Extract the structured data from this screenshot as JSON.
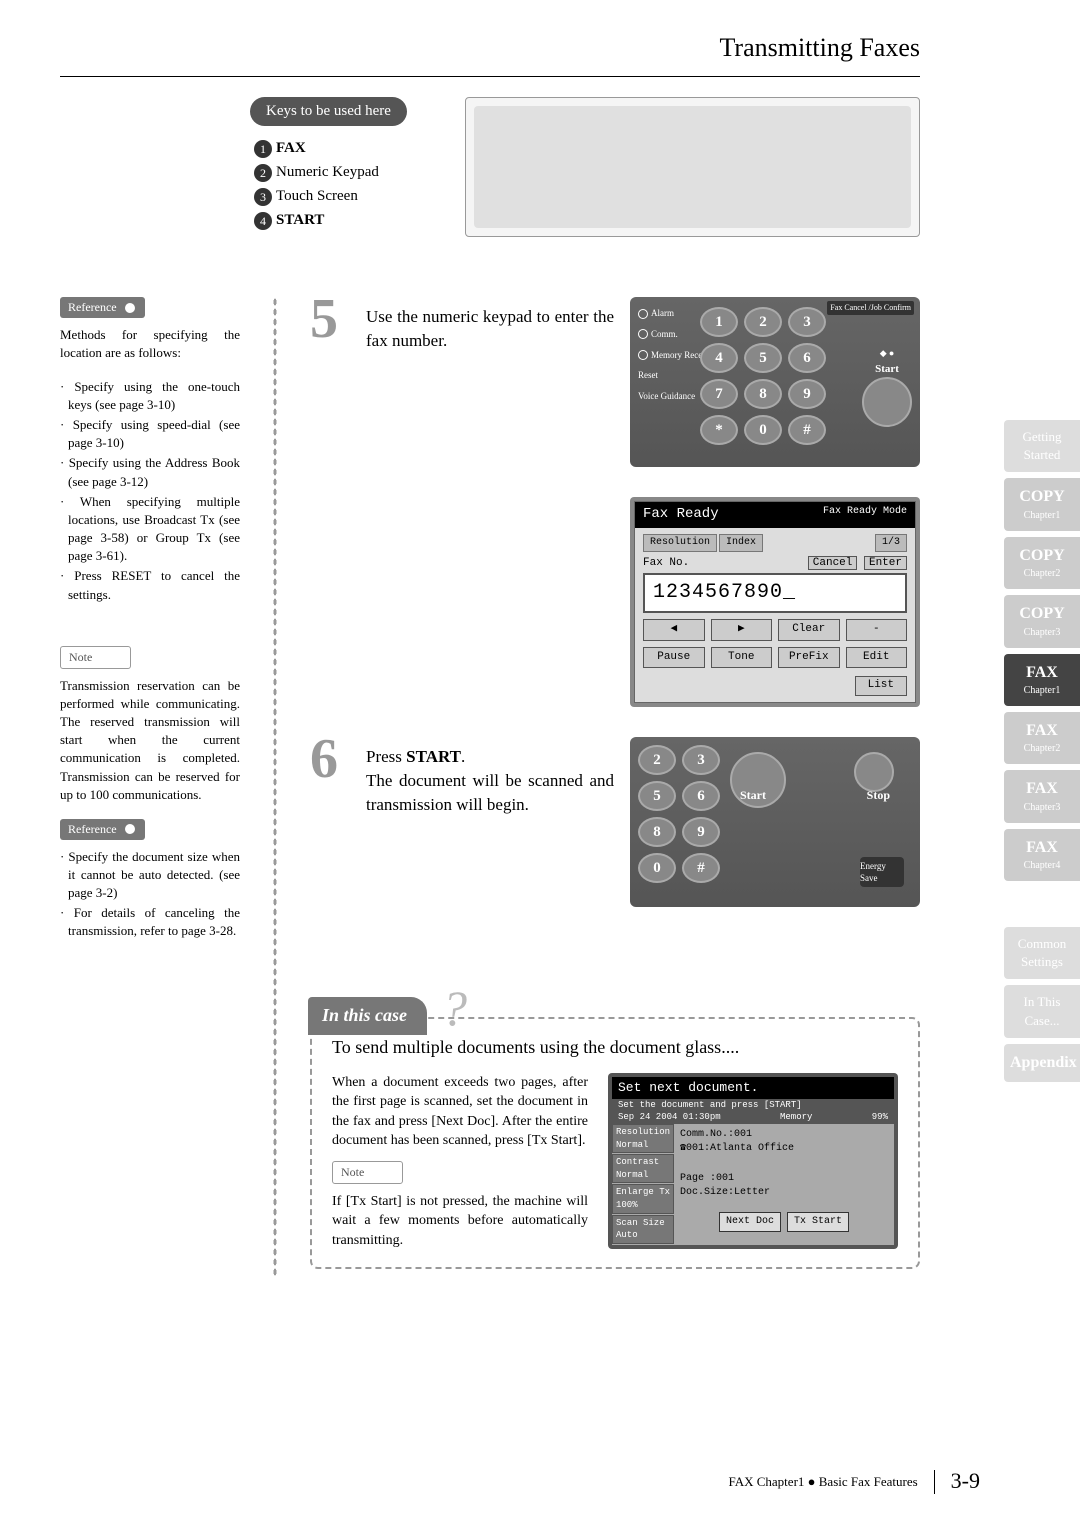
{
  "header": {
    "title": "Transmitting Faxes"
  },
  "keys": {
    "pill": "Keys to be used here",
    "items": [
      "FAX",
      "Numeric Keypad",
      "Touch Screen",
      "START"
    ]
  },
  "leftCol": {
    "ref1_label": "Reference",
    "ref1_intro": "Methods for specifying the location are as follows:",
    "ref1_items": [
      "Specify using the one-touch keys (see page 3-10)",
      "Specify using speed-dial (see page 3-10)",
      "Specify using the Address Book (see page 3-12)",
      "When specifying multiple locations, use Broadcast Tx (see page 3-58) or Group Tx (see page 3-61).",
      "Press RESET to cancel the settings."
    ],
    "note_label": "Note",
    "note_text": "Transmission reservation can be performed while communicating. The reserved transmission will start when the current communication is completed. Transmission can be reserved for up to 100 communications.",
    "ref2_label": "Reference",
    "ref2_items": [
      "Specify the document size when it cannot be auto detected. (see page 3-2)",
      "For details of canceling the transmission, refer to page 3-28."
    ]
  },
  "steps": {
    "s5": {
      "num": "5",
      "text": "Use the numeric keypad to enter the fax number."
    },
    "s6": {
      "num": "6",
      "text_a": "Press ",
      "text_b": "START",
      "text_c": ".",
      "text_d": "The document will be scanned and transmission will begin."
    }
  },
  "keypad": {
    "labels": {
      "alarm": "Alarm",
      "comm": "Comm.",
      "memory": "Memory Receive",
      "reset": "Reset",
      "voice": "Voice Guidance"
    },
    "fax_cancel": "Fax Cancel /Job Confirm",
    "start": "Start",
    "keys": [
      "1",
      "2",
      "3",
      "4",
      "5",
      "6",
      "7",
      "8",
      "9",
      "*",
      "0",
      "#"
    ]
  },
  "faxScreen": {
    "title": "Fax Ready",
    "mode": "Fax Ready Mode",
    "tab1": "Resolution",
    "tab2": "Index",
    "pager": "1/3",
    "faxno": "Fax No.",
    "cancel": "Cancel",
    "enter": "Enter",
    "number": "1234567890_",
    "row1": [
      "◀",
      "▶",
      "Clear",
      "-"
    ],
    "row2": [
      "Pause",
      "Tone",
      "PreFix",
      "Edit"
    ],
    "list": "List"
  },
  "startPanel": {
    "keys": [
      "2",
      "3",
      "5",
      "6",
      "8",
      "9",
      "0",
      "#"
    ],
    "start": "Start",
    "stop": "Stop",
    "energy": "Energy Save"
  },
  "case": {
    "tab": "In this case",
    "heading": "To send multiple documents using the document glass....",
    "p1": "When a document exceeds two pages, after the first page is scanned, set the document in the fax and press [Next Doc]. After the entire document has been scanned, press [Tx Start].",
    "note_label": "Note",
    "p2": "If [Tx Start] is not pressed, the machine will wait a few moments before automatically transmitting."
  },
  "docScreen": {
    "title": "Set next document.",
    "sub1": "Set the document and press [START]",
    "sub2_l": "Sep 24 2004 01:30pm",
    "sub2_m": "Memory",
    "sub2_r": "99%",
    "left": [
      {
        "k": "Resolution",
        "v": "Normal"
      },
      {
        "k": "Contrast",
        "v": "Normal"
      },
      {
        "k": "Enlarge Tx",
        "v": "100%"
      },
      {
        "k": "Scan Size",
        "v": "Auto"
      }
    ],
    "r1": "Comm.No.:001",
    "r2": "☎001:Atlanta   Office",
    "r3": "Page :001",
    "r4": "Doc.Size:Letter",
    "btn1": "Next Doc",
    "btn2": "Tx Start"
  },
  "sideTabs": [
    {
      "t": "Getting Started",
      "cls": "light"
    },
    {
      "t": "COPY",
      "ch": "Chapter1",
      "cls": "grey"
    },
    {
      "t": "COPY",
      "ch": "Chapter2",
      "cls": "grey"
    },
    {
      "t": "COPY",
      "ch": "Chapter3",
      "cls": "grey"
    },
    {
      "t": "FAX",
      "ch": "Chapter1",
      "cls": "active"
    },
    {
      "t": "FAX",
      "ch": "Chapter2",
      "cls": "grey"
    },
    {
      "t": "FAX",
      "ch": "Chapter3",
      "cls": "grey"
    },
    {
      "t": "FAX",
      "ch": "Chapter4",
      "cls": "grey"
    },
    {
      "t": "Common Settings",
      "cls": "light"
    },
    {
      "t": "In This Case...",
      "cls": "light"
    },
    {
      "t": "Appendix",
      "cls": "light"
    }
  ],
  "footer": {
    "text": "FAX Chapter1 ● Basic Fax Features",
    "page": "3-9"
  }
}
